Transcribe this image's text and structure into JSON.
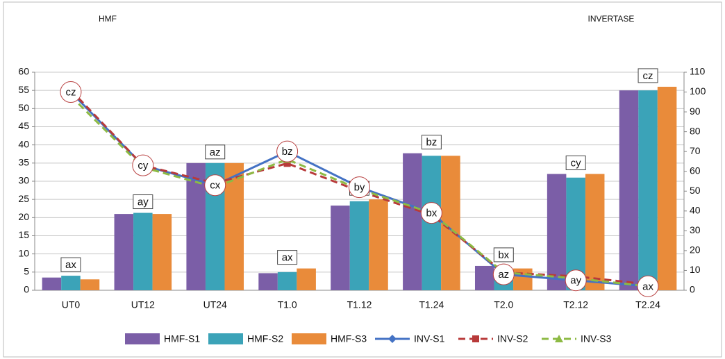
{
  "chart_data": {
    "type": "combo",
    "title": "HMF",
    "y2_title": "INVERTASE",
    "categories": [
      "UT0",
      "UT12",
      "UT24",
      "T1.0",
      "T1.12",
      "T1.24",
      "T2.0",
      "T2.12",
      "T2.24"
    ],
    "series": [
      {
        "name": "HMF-S1",
        "type": "bar",
        "color": "#7b5ea7",
        "values": [
          3.5,
          21,
          35,
          4.7,
          23.3,
          37.7,
          6.7,
          32,
          55
        ]
      },
      {
        "name": "HMF-S2",
        "type": "bar",
        "color": "#3ba3b8",
        "values": [
          4,
          21.3,
          35,
          5,
          24.5,
          37,
          5.5,
          31,
          55
        ]
      },
      {
        "name": "HMF-S3",
        "type": "bar",
        "color": "#e98b3a",
        "values": [
          3,
          21,
          35,
          6,
          25,
          37,
          6,
          32,
          56
        ]
      },
      {
        "name": "INV-S1",
        "type": "line",
        "axis": "y2",
        "color": "#4472c4",
        "marker": "diamond",
        "dashed": false,
        "values": [
          100,
          63,
          53,
          70,
          52,
          39,
          8,
          5,
          2
        ]
      },
      {
        "name": "INV-S2",
        "type": "line",
        "axis": "y2",
        "color": "#b83a3a",
        "marker": "square",
        "dashed": true,
        "values": [
          101,
          63,
          54,
          64,
          50,
          38,
          9,
          7,
          3
        ]
      },
      {
        "name": "INV-S3",
        "type": "line",
        "axis": "y2",
        "color": "#8dba44",
        "marker": "triangle",
        "dashed": true,
        "values": [
          98,
          62,
          52,
          66,
          51,
          39,
          9,
          6,
          2
        ]
      }
    ],
    "bar_labels": [
      "ax",
      "ay",
      "az",
      "ax",
      "by",
      "bz",
      "bx",
      "cy",
      "cz"
    ],
    "line_labels": [
      "cz",
      "cy",
      "cx",
      "bz",
      "by",
      "bx",
      "az",
      "ay",
      "ax"
    ],
    "ylim": [
      0,
      60
    ],
    "yticks": [
      0,
      5,
      10,
      15,
      20,
      25,
      30,
      35,
      40,
      45,
      50,
      55,
      60
    ],
    "y2lim": [
      0,
      110
    ],
    "y2ticks": [
      0,
      10,
      20,
      30,
      40,
      50,
      60,
      70,
      80,
      90,
      100,
      110
    ],
    "grid": true,
    "legend": "bottom"
  }
}
